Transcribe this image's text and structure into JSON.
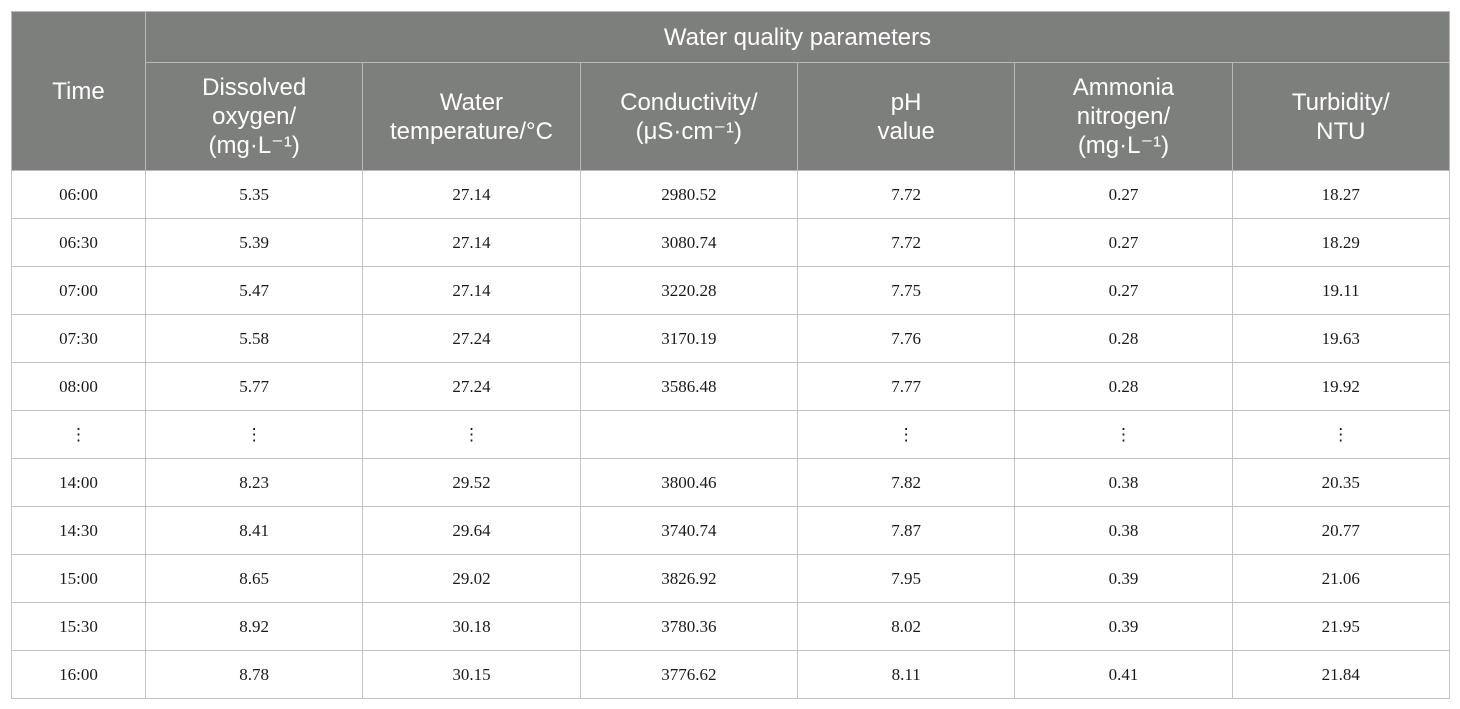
{
  "table": {
    "group_header": "Water quality parameters",
    "time_header": "Time",
    "columns": [
      {
        "lines": [
          "Dissolved",
          "oxygen/",
          "(mg·L⁻¹)"
        ]
      },
      {
        "lines": [
          "Water",
          "temperature/°C"
        ]
      },
      {
        "lines": [
          "Conductivity/",
          "(μS·cm⁻¹)"
        ]
      },
      {
        "lines": [
          "pH",
          "value"
        ]
      },
      {
        "lines": [
          "Ammonia",
          "nitrogen/",
          "(mg·L⁻¹)"
        ]
      },
      {
        "lines": [
          "Turbidity/",
          "NTU"
        ]
      }
    ],
    "rows": [
      [
        "06:00",
        "5.35",
        "27.14",
        "2980.52",
        "7.72",
        "0.27",
        "18.27"
      ],
      [
        "06:30",
        "5.39",
        "27.14",
        "3080.74",
        "7.72",
        "0.27",
        "18.29"
      ],
      [
        "07:00",
        "5.47",
        "27.14",
        "3220.28",
        "7.75",
        "0.27",
        "19.11"
      ],
      [
        "07:30",
        "5.58",
        "27.24",
        "3170.19",
        "7.76",
        "0.28",
        "19.63"
      ],
      [
        "08:00",
        "5.77",
        "27.24",
        "3586.48",
        "7.77",
        "0.28",
        "19.92"
      ],
      [
        "⋮",
        "⋮",
        "⋮",
        "",
        "⋮",
        "⋮",
        "⋮"
      ],
      [
        "14:00",
        "8.23",
        "29.52",
        "3800.46",
        "7.82",
        "0.38",
        "20.35"
      ],
      [
        "14:30",
        "8.41",
        "29.64",
        "3740.74",
        "7.87",
        "0.38",
        "20.77"
      ],
      [
        "15:00",
        "8.65",
        "29.02",
        "3826.92",
        "7.95",
        "0.39",
        "21.06"
      ],
      [
        "15:30",
        "8.92",
        "30.18",
        "3780.36",
        "8.02",
        "0.39",
        "21.95"
      ],
      [
        "16:00",
        "8.78",
        "30.15",
        "3776.62",
        "8.11",
        "0.41",
        "21.84"
      ]
    ]
  },
  "colors": {
    "header_bg": "#7d7f7c",
    "header_text": "#ffffff",
    "grid": "#c4c4c4"
  }
}
